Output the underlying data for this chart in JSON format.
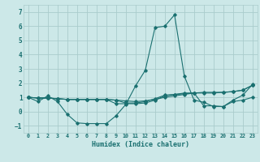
{
  "title": "",
  "xlabel": "Humidex (Indice chaleur)",
  "ylabel": "",
  "background_color": "#cce8e8",
  "grid_color": "#aacccc",
  "line_color": "#1a7070",
  "xlim": [
    -0.5,
    23.5
  ],
  "ylim": [
    -1.5,
    7.5
  ],
  "xticks": [
    0,
    1,
    2,
    3,
    4,
    5,
    6,
    7,
    8,
    9,
    10,
    11,
    12,
    13,
    14,
    15,
    16,
    17,
    18,
    19,
    20,
    21,
    22,
    23
  ],
  "yticks": [
    -1,
    0,
    1,
    2,
    3,
    4,
    5,
    6,
    7
  ],
  "series": [
    {
      "x": [
        0,
        1,
        2,
        3,
        4,
        5,
        6,
        7,
        8,
        9,
        10,
        11,
        12,
        13,
        14,
        15,
        16,
        17,
        18,
        19,
        20,
        21,
        22,
        23
      ],
      "y": [
        1.0,
        0.7,
        1.1,
        0.7,
        -0.2,
        -0.8,
        -0.85,
        -0.85,
        -0.85,
        -0.3,
        0.5,
        1.8,
        2.9,
        5.9,
        6.0,
        6.8,
        2.5,
        0.8,
        0.65,
        0.35,
        0.35,
        0.7,
        0.8,
        1.0
      ]
    },
    {
      "x": [
        0,
        1,
        2,
        3,
        4,
        5,
        6,
        7,
        8,
        9,
        10,
        11,
        12,
        13,
        14,
        15,
        16,
        17,
        18,
        19,
        20,
        21,
        22,
        23
      ],
      "y": [
        1.0,
        0.95,
        0.95,
        0.9,
        0.85,
        0.85,
        0.85,
        0.85,
        0.85,
        0.8,
        0.75,
        0.7,
        0.75,
        0.85,
        1.0,
        1.1,
        1.2,
        1.3,
        1.35,
        1.35,
        1.35,
        1.4,
        1.5,
        1.85
      ]
    },
    {
      "x": [
        0,
        1,
        2,
        3,
        4,
        5,
        6,
        7,
        8,
        9,
        10,
        11,
        12,
        13,
        14,
        15,
        16,
        17,
        18,
        19,
        20,
        21,
        22,
        23
      ],
      "y": [
        1.0,
        0.95,
        0.95,
        0.9,
        0.85,
        0.85,
        0.85,
        0.85,
        0.85,
        0.8,
        0.6,
        0.6,
        0.7,
        0.9,
        1.15,
        1.2,
        1.3,
        1.3,
        1.3,
        1.3,
        1.35,
        1.4,
        1.5,
        1.85
      ]
    },
    {
      "x": [
        0,
        1,
        2,
        3,
        4,
        5,
        6,
        7,
        8,
        9,
        10,
        11,
        12,
        13,
        14,
        15,
        16,
        17,
        18,
        19,
        20,
        21,
        22,
        23
      ],
      "y": [
        1.0,
        0.95,
        0.95,
        0.9,
        0.85,
        0.85,
        0.85,
        0.85,
        0.85,
        0.55,
        0.55,
        0.55,
        0.6,
        0.8,
        1.1,
        1.2,
        1.25,
        1.3,
        0.4,
        0.4,
        0.35,
        0.8,
        1.15,
        1.9
      ]
    }
  ]
}
